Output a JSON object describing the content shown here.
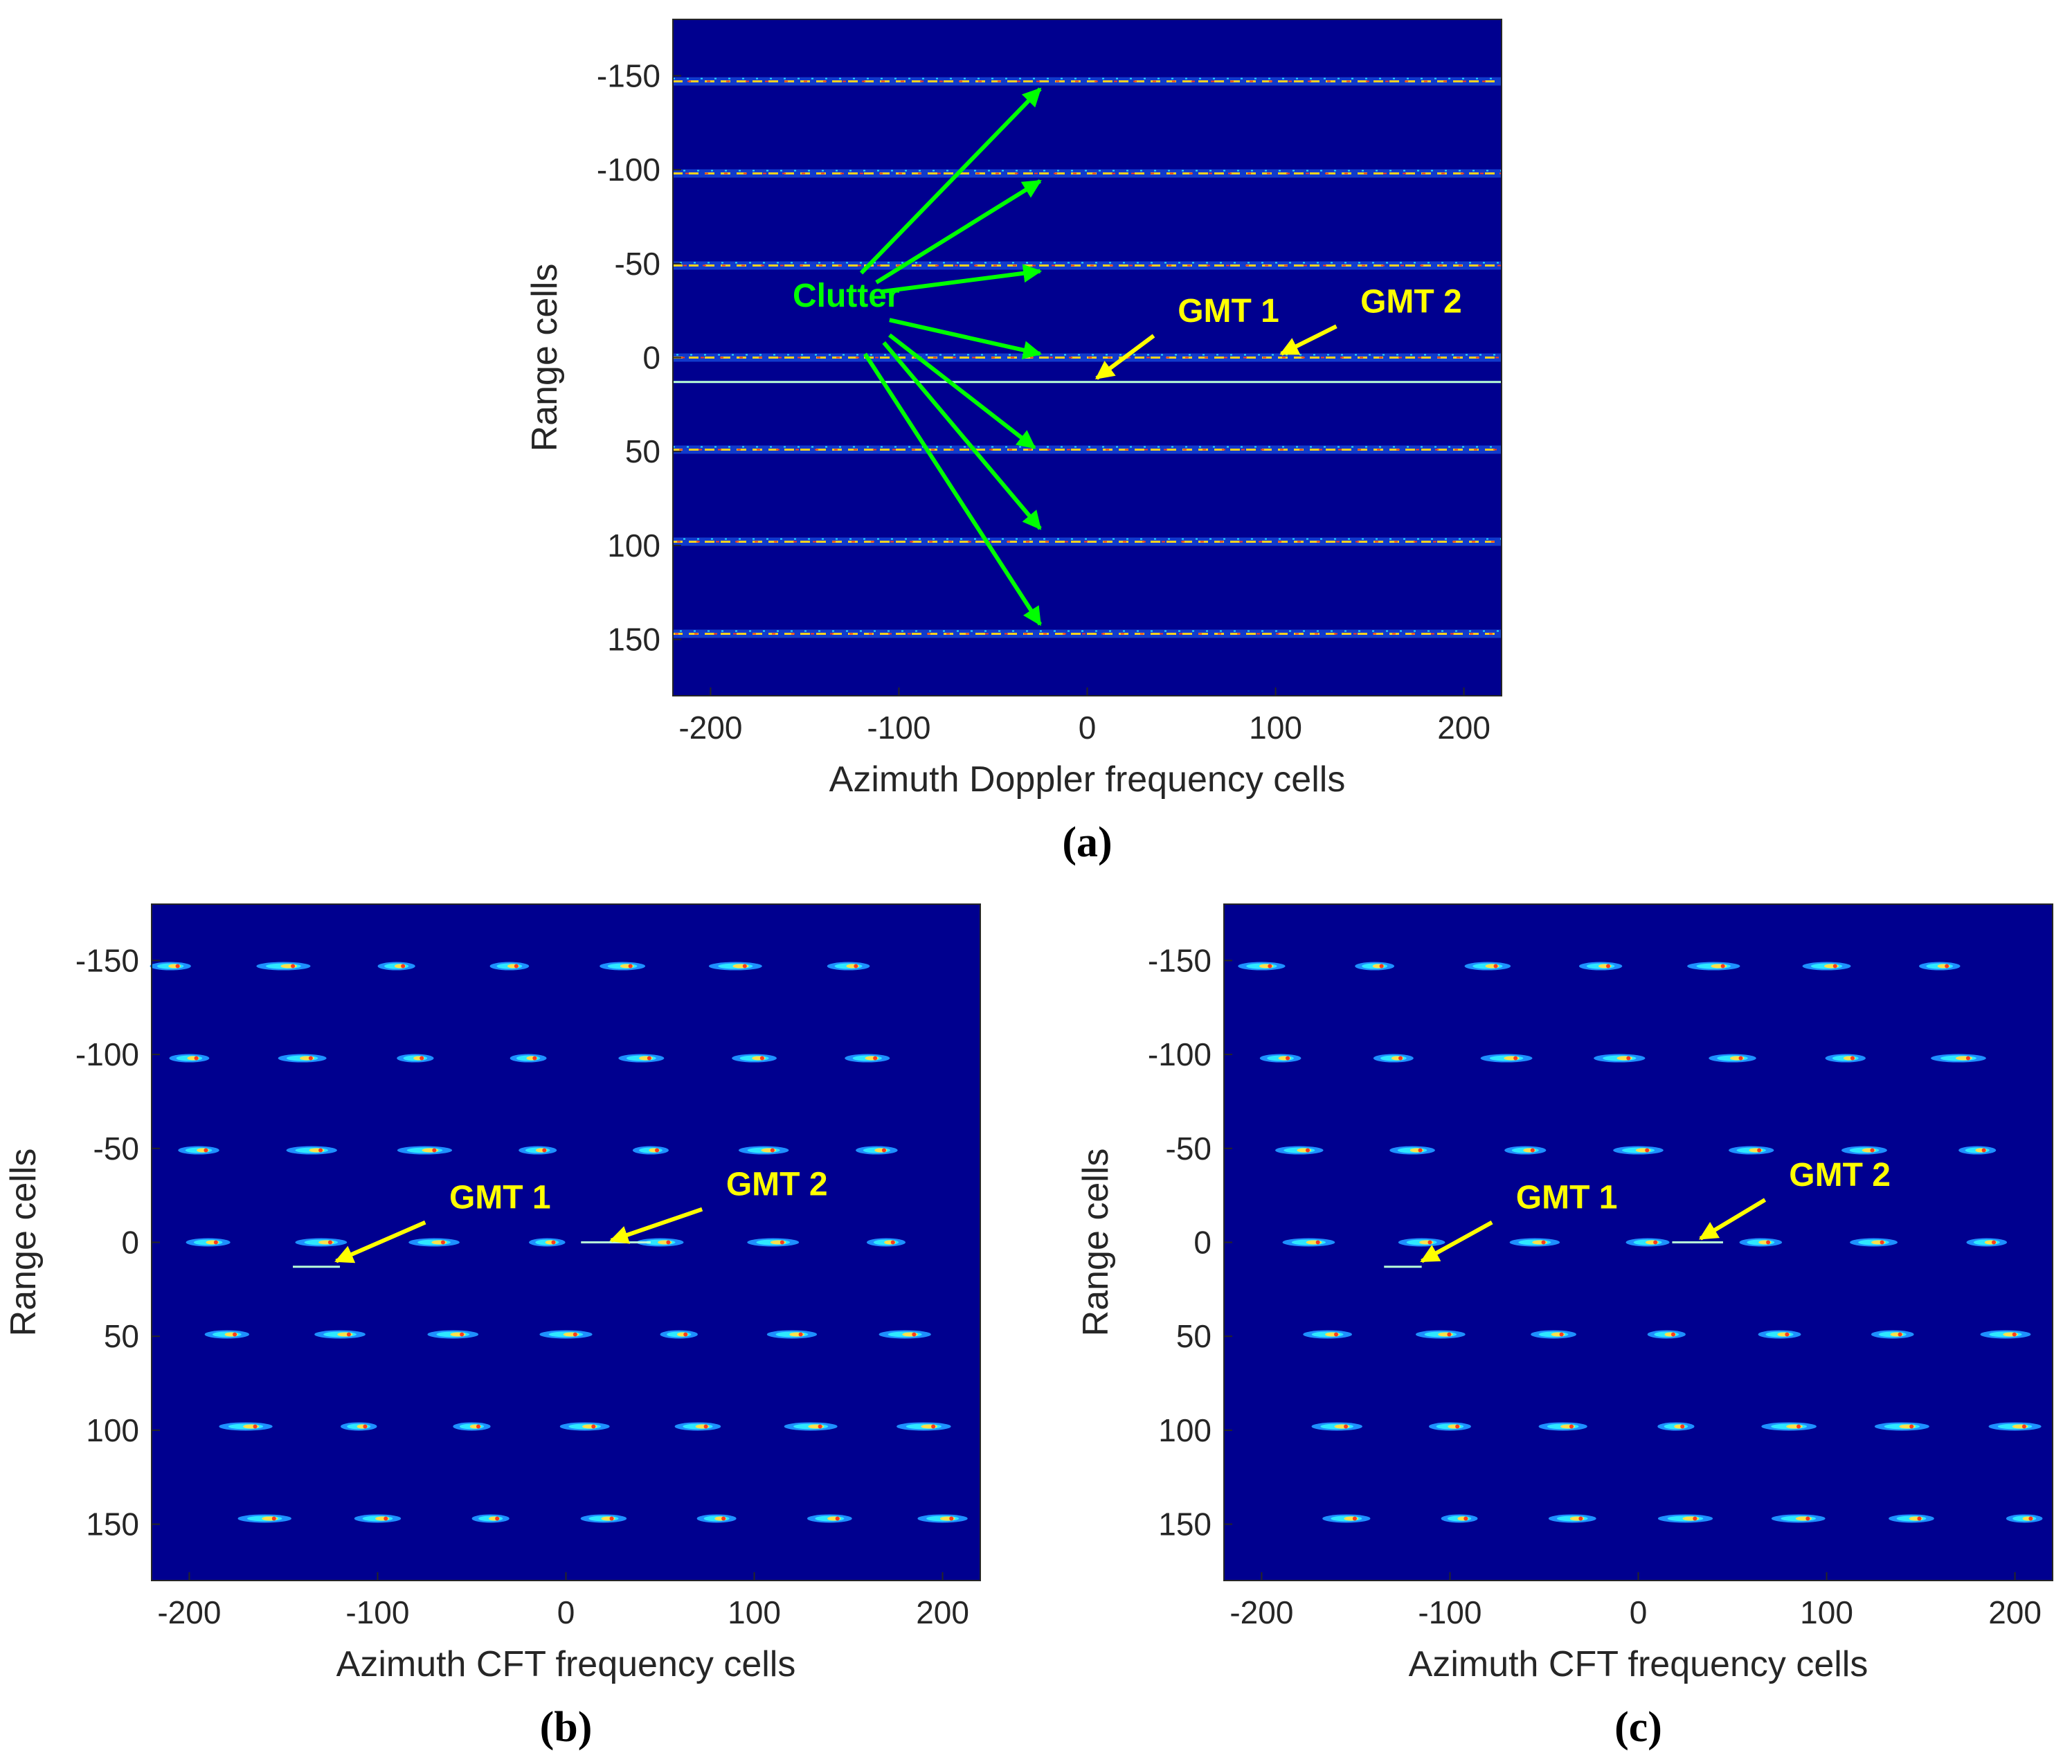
{
  "colors": {
    "background": "#00008f",
    "clutter_annotation": "#00ff00",
    "gmt_annotation": "#ffff00"
  },
  "chart_data": [
    {
      "id": "a",
      "type": "heatmap",
      "caption": "(a)",
      "xlabel": "Azimuth Doppler frequency cells",
      "ylabel": "Range cells",
      "xlim": [
        -220,
        220
      ],
      "ylim": [
        -180,
        180
      ],
      "y_reversed": true,
      "xticks": [
        -200,
        -100,
        0,
        100,
        200
      ],
      "yticks": [
        -150,
        -100,
        -50,
        0,
        50,
        100,
        150
      ],
      "clutter_type": "line",
      "clutter_rows": [
        -147,
        -98,
        -49,
        0,
        49,
        98,
        147
      ],
      "gmt_lines": [
        {
          "y": 13,
          "x_from": -220,
          "x_to": 220
        }
      ],
      "annotations": {
        "clutter_label": "Clutter",
        "clutter_arrows_to": [
          [
            -25,
            -143
          ],
          [
            -25,
            -94
          ],
          [
            -25,
            -46
          ],
          [
            -25,
            -2
          ],
          [
            -28,
            48
          ],
          [
            -25,
            91
          ],
          [
            -25,
            142
          ]
        ],
        "gmt": [
          {
            "label": "GMT 1",
            "text_at": [
              75,
              -19
            ],
            "arrow_to": [
              5,
              11
            ]
          },
          {
            "label": "GMT 2",
            "text_at": [
              172,
              -24
            ],
            "arrow_to": [
              103,
              -2
            ]
          }
        ]
      }
    },
    {
      "id": "b",
      "type": "heatmap",
      "caption": "(b)",
      "xlabel": "Azimuth CFT frequency cells",
      "ylabel": "Range cells",
      "xlim": [
        -220,
        220
      ],
      "ylim": [
        -180,
        180
      ],
      "y_reversed": true,
      "xticks": [
        -200,
        -100,
        0,
        100,
        200
      ],
      "yticks": [
        -150,
        -100,
        -50,
        0,
        50,
        100,
        150
      ],
      "clutter_type": "points",
      "clutter_rows": [
        {
          "y": -147,
          "x_start": -210,
          "x_step": 60,
          "count": 7
        },
        {
          "y": -98,
          "x_start": -200,
          "x_step": 60,
          "count": 7
        },
        {
          "y": -49,
          "x_start": -195,
          "x_step": 60,
          "count": 7
        },
        {
          "y": 0,
          "x_start": -190,
          "x_step": 60,
          "count": 7
        },
        {
          "y": 49,
          "x_start": -180,
          "x_step": 60,
          "count": 7
        },
        {
          "y": 98,
          "x_start": -170,
          "x_step": 60,
          "count": 7
        },
        {
          "y": 147,
          "x_start": -160,
          "x_step": 60,
          "count": 7
        }
      ],
      "gmt_lines": [
        {
          "y": 13,
          "x_from": -145,
          "x_to": -120
        },
        {
          "y": 0,
          "x_from": 8,
          "x_to": 45
        }
      ],
      "annotations": {
        "gmt": [
          {
            "label": "GMT 1",
            "text_at": [
              -35,
              -18
            ],
            "arrow_to": [
              -122,
              10
            ]
          },
          {
            "label": "GMT 2",
            "text_at": [
              112,
              -25
            ],
            "arrow_to": [
              24,
              -1
            ]
          }
        ]
      }
    },
    {
      "id": "c",
      "type": "heatmap",
      "caption": "(c)",
      "xlabel": "Azimuth CFT frequency cells",
      "ylabel": "Range cells",
      "xlim": [
        -220,
        220
      ],
      "ylim": [
        -180,
        180
      ],
      "y_reversed": true,
      "xticks": [
        -200,
        -100,
        0,
        100,
        200
      ],
      "yticks": [
        -150,
        -100,
        -50,
        0,
        50,
        100,
        150
      ],
      "clutter_type": "points",
      "clutter_rows": [
        {
          "y": -147,
          "x_start": -200,
          "x_step": 60,
          "count": 7
        },
        {
          "y": -98,
          "x_start": -190,
          "x_step": 60,
          "count": 7
        },
        {
          "y": -49,
          "x_start": -180,
          "x_step": 60,
          "count": 7
        },
        {
          "y": 0,
          "x_start": -175,
          "x_step": 60,
          "count": 7
        },
        {
          "y": 49,
          "x_start": -165,
          "x_step": 60,
          "count": 7
        },
        {
          "y": 98,
          "x_start": -160,
          "x_step": 60,
          "count": 7
        },
        {
          "y": 147,
          "x_start": -155,
          "x_step": 60,
          "count": 7
        }
      ],
      "gmt_lines": [
        {
          "y": 13,
          "x_from": -135,
          "x_to": -115
        },
        {
          "y": 0,
          "x_from": 18,
          "x_to": 45
        }
      ],
      "annotations": {
        "gmt": [
          {
            "label": "GMT 1",
            "text_at": [
              -38,
              -18
            ],
            "arrow_to": [
              -115,
              10
            ]
          },
          {
            "label": "GMT 2",
            "text_at": [
              107,
              -30
            ],
            "arrow_to": [
              33,
              -2
            ]
          }
        ]
      }
    }
  ]
}
